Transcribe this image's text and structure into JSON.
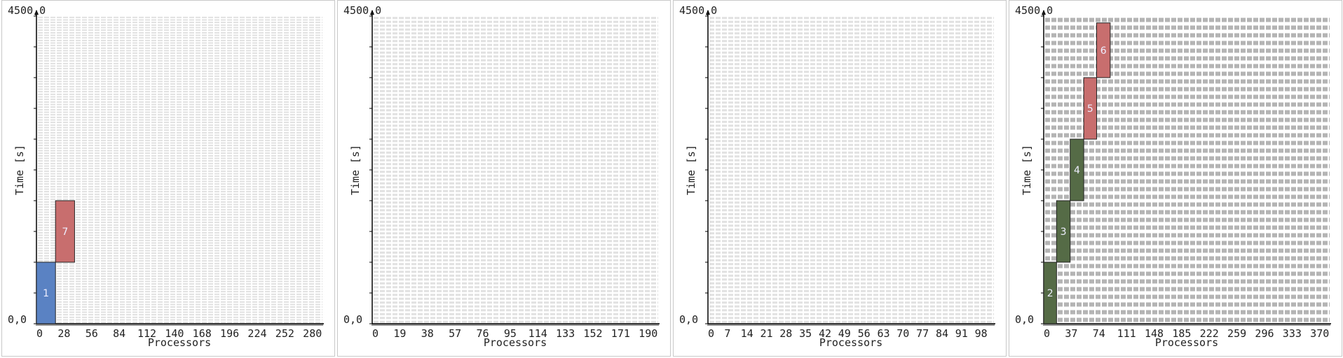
{
  "chart_data": [
    {
      "type": "gantt",
      "xlabel": "Processors",
      "ylabel": "Time [s]",
      "y_top_label": "4500,0",
      "y_bottom_label": "0,0",
      "xticks": [
        "0",
        "28",
        "56",
        "84",
        "112",
        "140",
        "168",
        "196",
        "224",
        "252",
        "280"
      ],
      "xmax": 300,
      "ymax": 4500,
      "grid_color": "#e1e1e1",
      "grid_rows": 120,
      "tasks": [
        {
          "id": "1",
          "x0": 0,
          "x1": 20,
          "t0": 0,
          "t1": 900,
          "color": "#5a82c3"
        },
        {
          "id": "7",
          "x0": 20,
          "x1": 40,
          "t0": 900,
          "t1": 1800,
          "color": "#c86e6e"
        }
      ]
    },
    {
      "type": "gantt",
      "xlabel": "Processors",
      "ylabel": "Time [s]",
      "y_top_label": "4500,0",
      "y_bottom_label": "0,0",
      "xticks": [
        "0",
        "19",
        "38",
        "57",
        "76",
        "95",
        "114",
        "133",
        "152",
        "171",
        "190"
      ],
      "xmax": 200,
      "ymax": 4500,
      "grid_color": "#e1e1e1",
      "grid_rows": 80,
      "tasks": []
    },
    {
      "type": "gantt",
      "xlabel": "Processors",
      "ylabel": "Time [s]",
      "y_top_label": "4500,0",
      "y_bottom_label": "0,0",
      "xticks": [
        "0",
        "7",
        "14",
        "21",
        "28",
        "35",
        "42",
        "49",
        "56",
        "63",
        "70",
        "77",
        "84",
        "91",
        "98"
      ],
      "xmax": 100,
      "ymax": 4500,
      "grid_color": "#e1e1e1",
      "grid_rows": 80,
      "tasks": []
    },
    {
      "type": "gantt",
      "xlabel": "Processors",
      "ylabel": "Time [s]",
      "y_top_label": "4500,0",
      "y_bottom_label": "0,0",
      "xticks": [
        "0",
        "37",
        "74",
        "111",
        "148",
        "185",
        "222",
        "259",
        "296",
        "333",
        "370"
      ],
      "xmax": 400,
      "ymax": 4500,
      "grid_color": "#b4b4b4",
      "grid_rows": 40,
      "tasks": [
        {
          "id": "2",
          "x0": 0,
          "x1": 18,
          "t0": 0,
          "t1": 900,
          "color": "#556b46"
        },
        {
          "id": "3",
          "x0": 18,
          "x1": 37,
          "t0": 900,
          "t1": 1800,
          "color": "#556b46"
        },
        {
          "id": "4",
          "x0": 37,
          "x1": 56,
          "t0": 1800,
          "t1": 2700,
          "color": "#556b46"
        },
        {
          "id": "5",
          "x0": 56,
          "x1": 74,
          "t0": 2700,
          "t1": 3600,
          "color": "#c86e6e"
        },
        {
          "id": "6",
          "x0": 74,
          "x1": 93,
          "t0": 3600,
          "t1": 4400,
          "color": "#c86e6e"
        }
      ]
    }
  ]
}
